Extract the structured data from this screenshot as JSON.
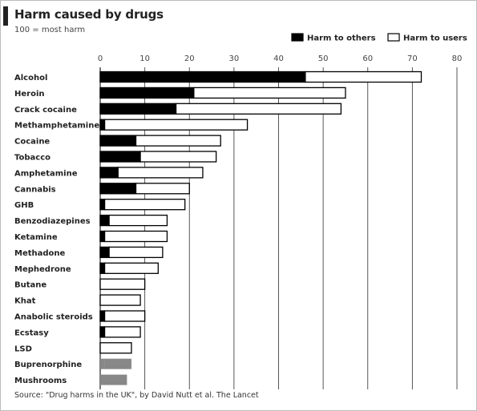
{
  "chart_data": {
    "type": "bar",
    "stacked": true,
    "orientation": "horizontal",
    "title": "Harm caused by drugs",
    "subtitle": "100 = most harm",
    "source": "Source: \"Drug harms in the UK\", by David Nutt et al. The Lancet",
    "xlim": [
      0,
      80
    ],
    "ticks": [
      0,
      10,
      20,
      30,
      40,
      50,
      60,
      70,
      80
    ],
    "grid": true,
    "legend_position": "top-right",
    "categories": [
      "Alcohol",
      "Heroin",
      "Crack cocaine",
      "Methamphetamine",
      "Cocaine",
      "Tobacco",
      "Amphetamine",
      "Cannabis",
      "GHB",
      "Benzodiazepines",
      "Ketamine",
      "Methadone",
      "Mephedrone",
      "Butane",
      "Khat",
      "Anabolic steroids",
      "Ecstasy",
      "LSD",
      "Buprenorphine",
      "Mushrooms"
    ],
    "series": [
      {
        "name": "Harm to others",
        "color": "#000000",
        "values": [
          46,
          21,
          17,
          1,
          8,
          9,
          4,
          8,
          1,
          2,
          1,
          2,
          1,
          0,
          0,
          1,
          1,
          0,
          1,
          0
        ]
      },
      {
        "name": "Harm to users",
        "color": "#ffffff",
        "values": [
          26,
          34,
          37,
          32,
          19,
          17,
          19,
          12,
          18,
          13,
          14,
          12,
          12,
          10,
          9,
          9,
          8,
          7,
          6,
          6
        ]
      }
    ],
    "untyped_bar_colors": {
      "Buprenorphine": "#888888",
      "Mushrooms": "#888888"
    }
  }
}
